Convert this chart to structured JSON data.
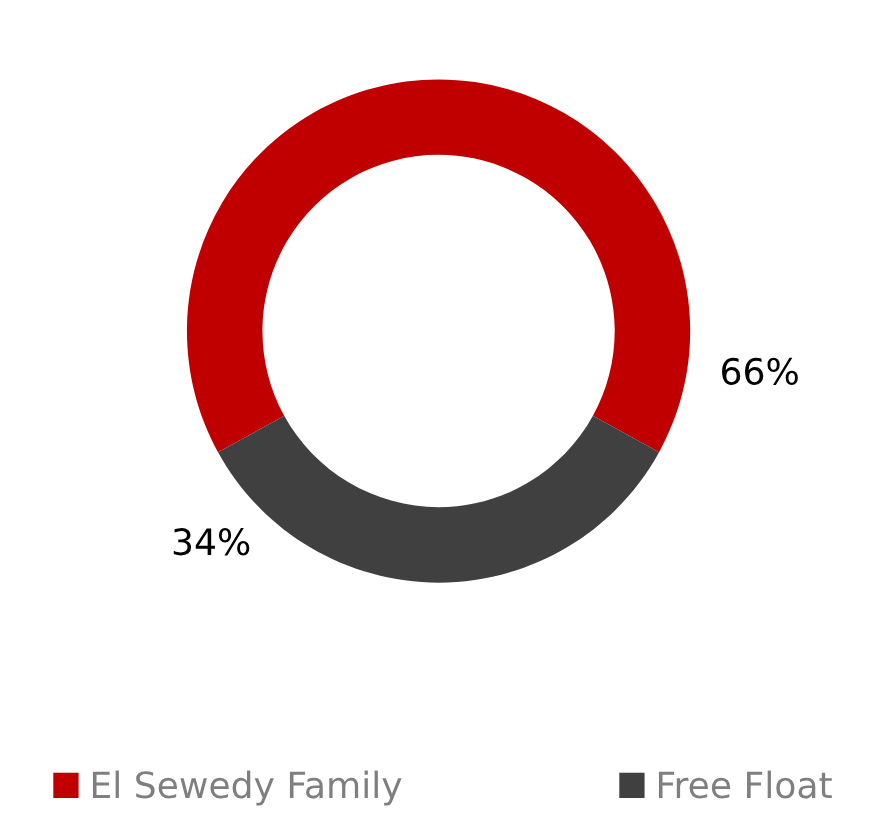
{
  "chart_data": {
    "type": "donut",
    "categories": [
      "El Sewedy Family",
      "Free Float"
    ],
    "values": [
      66,
      34
    ],
    "colors": [
      "#c00000",
      "#404040"
    ],
    "value_labels": [
      "66%",
      "34%"
    ],
    "legend": "bottom"
  }
}
